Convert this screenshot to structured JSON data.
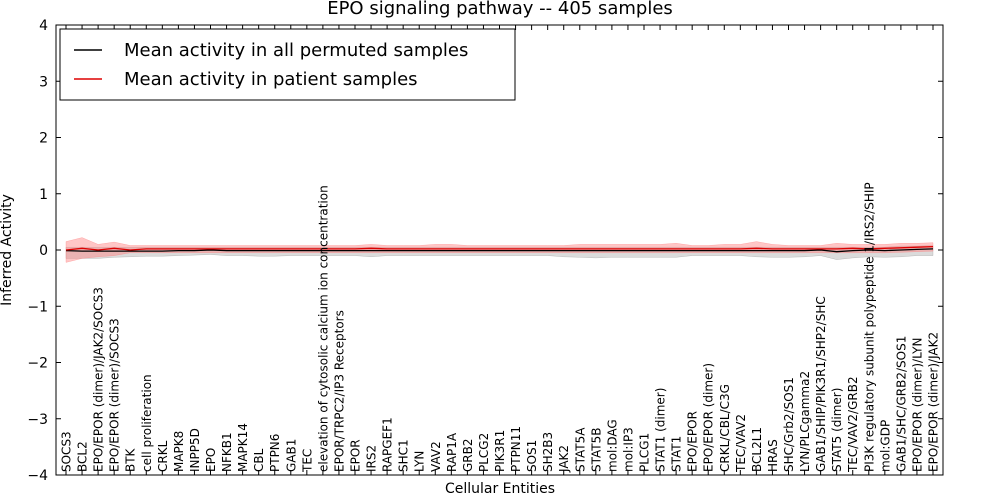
{
  "chart_data": {
    "type": "line",
    "title": "EPO signaling pathway -- 405 samples",
    "xlabel": "Cellular Entities",
    "ylabel": "Inferred Activity",
    "ylim": [
      -4,
      4
    ],
    "yticks": [
      -4,
      -3,
      -2,
      -1,
      0,
      1,
      2,
      3,
      4
    ],
    "ytick_labels": [
      "−4",
      "−3",
      "−2",
      "−1",
      "0",
      "1",
      "2",
      "3",
      "4"
    ],
    "legend_position": "top-left",
    "categories": [
      "SOCS3",
      "BCL2",
      "EPO/EPOR (dimer)/JAK2/SOCS3",
      "EPO/EPOR (dimer)/SOCS3",
      "BTK",
      "cell proliferation",
      "CRKL",
      "MAPK8",
      "INPP5D",
      "EPO",
      "NFKB1",
      "MAPK14",
      "CBL",
      "PTPN6",
      "GAB1",
      "TEC",
      "elevation of cytosolic calcium ion concentration",
      "EPOR/TRPC2/IP3 Receptors",
      "EPOR",
      "IRS2",
      "RAPGEF1",
      "SHC1",
      "LYN",
      "VAV2",
      "RAP1A",
      "GRB2",
      "PLCG2",
      "PIK3R1",
      "PTPN11",
      "SOS1",
      "SH2B3",
      "JAK2",
      "STAT5A",
      "STAT5B",
      "mol:DAG",
      "mol:IP3",
      "PLCG1",
      "STAT1 (dimer)",
      "STAT1",
      "EPO/EPOR",
      "EPO/EPOR (dimer)",
      "CRKL/CBL/C3G",
      "TEC/VAV2",
      "BCL2L1",
      "HRAS",
      "SHC/Grb2/SOS1",
      "LYN/PLCgamma2",
      "GAB1/SHIP/PIK3R1/SHP2/SHC",
      "STAT5 (dimer)",
      "TEC/VAV2/GRB2",
      "PI3K regulatory subunit polypeptide 1/IRS2/SHIP",
      "mol:GDP",
      "GAB1/SHC/GRB2/SOS1",
      "EPO/EPOR (dimer)/LYN",
      "EPO/EPOR (dimer)/JAK2"
    ],
    "series": [
      {
        "name": "Mean activity in all permuted samples",
        "color": "#000000",
        "band_color": "#999999",
        "values": [
          -0.01,
          -0.02,
          -0.02,
          -0.02,
          -0.02,
          -0.02,
          -0.02,
          -0.01,
          -0.01,
          0.0,
          -0.01,
          -0.01,
          -0.01,
          -0.01,
          -0.01,
          -0.01,
          -0.01,
          -0.01,
          -0.01,
          -0.01,
          -0.01,
          -0.01,
          -0.01,
          -0.01,
          -0.01,
          -0.01,
          -0.01,
          -0.01,
          -0.01,
          -0.01,
          -0.01,
          -0.01,
          -0.01,
          -0.01,
          -0.01,
          -0.01,
          -0.01,
          -0.01,
          -0.01,
          -0.01,
          -0.01,
          -0.01,
          -0.01,
          -0.01,
          -0.01,
          -0.01,
          -0.01,
          0.0,
          -0.03,
          -0.01,
          0.0,
          -0.01,
          0.0,
          0.01,
          0.02
        ],
        "lower": [
          -0.15,
          -0.15,
          -0.15,
          -0.13,
          -0.12,
          -0.11,
          -0.11,
          -0.1,
          -0.09,
          -0.08,
          -0.1,
          -0.1,
          -0.11,
          -0.11,
          -0.1,
          -0.1,
          -0.1,
          -0.1,
          -0.1,
          -0.12,
          -0.1,
          -0.1,
          -0.1,
          -0.1,
          -0.1,
          -0.1,
          -0.1,
          -0.1,
          -0.1,
          -0.1,
          -0.1,
          -0.12,
          -0.13,
          -0.14,
          -0.13,
          -0.13,
          -0.13,
          -0.13,
          -0.13,
          -0.1,
          -0.1,
          -0.1,
          -0.1,
          -0.12,
          -0.13,
          -0.13,
          -0.12,
          -0.1,
          -0.17,
          -0.14,
          -0.12,
          -0.13,
          -0.12,
          -0.1,
          -0.1
        ],
        "upper": [
          0.05,
          0.05,
          0.05,
          0.05,
          0.05,
          0.05,
          0.05,
          0.05,
          0.05,
          0.05,
          0.05,
          0.05,
          0.05,
          0.05,
          0.05,
          0.05,
          0.05,
          0.05,
          0.05,
          0.05,
          0.05,
          0.05,
          0.05,
          0.05,
          0.05,
          0.05,
          0.05,
          0.05,
          0.05,
          0.05,
          0.05,
          0.05,
          0.05,
          0.05,
          0.05,
          0.05,
          0.05,
          0.05,
          0.05,
          0.05,
          0.05,
          0.05,
          0.05,
          0.05,
          0.05,
          0.05,
          0.05,
          0.05,
          0.05,
          0.05,
          0.05,
          0.05,
          0.07,
          0.07,
          0.08
        ]
      },
      {
        "name": "Mean activity in patient samples",
        "color": "#dd0000",
        "band_color": "#ff8080",
        "values": [
          0.0,
          0.03,
          0.0,
          0.03,
          0.0,
          0.02,
          0.02,
          0.02,
          0.02,
          0.02,
          0.02,
          0.02,
          0.02,
          0.02,
          0.02,
          0.02,
          0.02,
          0.02,
          0.02,
          0.03,
          0.02,
          0.02,
          0.02,
          0.02,
          0.02,
          0.02,
          0.02,
          0.02,
          0.02,
          0.02,
          0.02,
          0.02,
          0.02,
          0.02,
          0.02,
          0.02,
          0.02,
          0.02,
          0.02,
          0.02,
          0.02,
          0.02,
          0.02,
          0.03,
          0.02,
          0.02,
          0.02,
          0.02,
          0.02,
          0.03,
          0.02,
          0.03,
          0.04,
          0.05,
          0.06
        ],
        "lower": [
          -0.22,
          -0.15,
          -0.12,
          -0.1,
          -0.05,
          -0.05,
          -0.05,
          -0.05,
          -0.05,
          -0.05,
          -0.05,
          -0.05,
          -0.05,
          -0.05,
          -0.05,
          -0.05,
          -0.05,
          -0.05,
          -0.05,
          -0.05,
          -0.05,
          -0.05,
          -0.05,
          -0.05,
          -0.05,
          -0.05,
          -0.05,
          -0.05,
          -0.05,
          -0.05,
          -0.05,
          -0.05,
          -0.05,
          -0.05,
          -0.05,
          -0.05,
          -0.05,
          -0.05,
          -0.05,
          -0.05,
          -0.05,
          -0.05,
          -0.05,
          -0.05,
          -0.05,
          -0.05,
          -0.05,
          -0.05,
          -0.05,
          -0.05,
          -0.05,
          -0.05,
          -0.04,
          -0.03,
          -0.02
        ],
        "upper": [
          0.15,
          0.22,
          0.1,
          0.14,
          0.08,
          0.08,
          0.08,
          0.08,
          0.08,
          0.08,
          0.08,
          0.08,
          0.08,
          0.08,
          0.08,
          0.08,
          0.08,
          0.08,
          0.08,
          0.1,
          0.08,
          0.08,
          0.08,
          0.1,
          0.1,
          0.08,
          0.08,
          0.08,
          0.08,
          0.08,
          0.08,
          0.08,
          0.1,
          0.1,
          0.1,
          0.1,
          0.1,
          0.1,
          0.12,
          0.08,
          0.08,
          0.1,
          0.1,
          0.15,
          0.1,
          0.08,
          0.08,
          0.08,
          0.12,
          0.1,
          0.1,
          0.1,
          0.12,
          0.12,
          0.13
        ]
      }
    ]
  }
}
